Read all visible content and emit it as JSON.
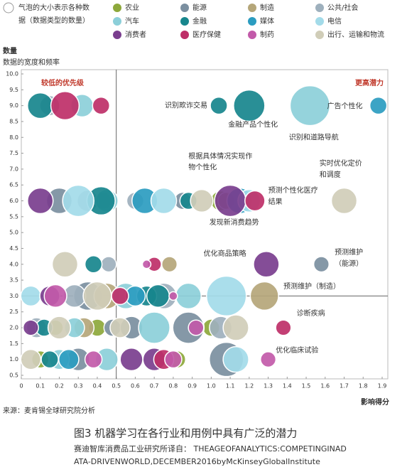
{
  "chart_data": {
    "type": "bubble",
    "legend_title": [
      "气泡的大小表示各种数",
      "据（数据类型的数量）"
    ],
    "y_label": "数量",
    "y_sublabel": "数据的宽度和频率",
    "x_label": "影响得分",
    "quadrant_labels": [
      "较低的优先级",
      "更高潜力"
    ],
    "xlim": [
      0,
      1.9
    ],
    "ylim": [
      0.5,
      10
    ],
    "xticks": [
      0,
      0.1,
      0.2,
      0.3,
      0.4,
      0.5,
      0.6,
      0.7,
      0.8,
      0.9,
      {
        "value": 1,
        "label": "1.0"
      },
      1.1,
      1.2,
      1.3,
      1.4,
      1.5,
      1.6,
      1.7,
      1.8,
      1.9
    ],
    "yticks": [
      0.5,
      {
        "value": 1,
        "label": "1.0"
      },
      1.5,
      {
        "value": 2,
        "label": "2.0"
      },
      2.5,
      {
        "value": 3,
        "label": "3.0"
      },
      3.5,
      {
        "value": 4,
        "label": "4.0"
      },
      4.5,
      {
        "value": 5,
        "label": "5.0"
      },
      5.5,
      {
        "value": 6,
        "label": "6.0"
      },
      6.5,
      {
        "value": 7,
        "label": "7.0"
      },
      7.5,
      {
        "value": 8,
        "label": "8.0"
      },
      8.5,
      {
        "value": 9,
        "label": "9.0"
      },
      9.5,
      {
        "value": 10,
        "label": "10.0"
      }
    ],
    "reference_lines": {
      "x": 0.5,
      "y": 3.0
    },
    "series": [
      {
        "name": "农业",
        "color": "#8da83b",
        "x": [
          1.05,
          0.18,
          0.4,
          1.0,
          0.1,
          0.82
        ],
        "y": [
          6,
          2,
          2,
          2,
          1,
          1
        ],
        "size": [
          22,
          13,
          16,
          16,
          16,
          16
        ]
      },
      {
        "name": "能源",
        "color": "#7b8fa0",
        "x": [
          0.2,
          0.85,
          1.58,
          0.35,
          0.48,
          0.58,
          0.88,
          0.3,
          1.08
        ],
        "y": [
          6,
          6,
          4,
          3,
          2,
          2,
          2,
          1,
          1
        ],
        "size": [
          36,
          16,
          13,
          44,
          16,
          28,
          54,
          28,
          64
        ]
      },
      {
        "name": "制造",
        "color": "#b5a679",
        "x": [
          0.43,
          1.08,
          0.78,
          0.45,
          1.28,
          0.33
        ],
        "y": [
          6,
          6,
          4,
          3,
          3,
          2
        ],
        "size": [
          16,
          16,
          13,
          36,
          44,
          22
        ]
      },
      {
        "name": "公共/社会",
        "color": "#9eb0bd",
        "x": [
          0.15,
          0.35,
          0.6,
          0.46,
          0.28,
          0.75,
          0.08,
          1.05
        ],
        "y": [
          9,
          6,
          6,
          4,
          3,
          3,
          2,
          2
        ],
        "size": [
          22,
          25,
          16,
          13,
          28,
          36,
          22,
          28
        ]
      },
      {
        "name": "汽车",
        "color": "#8ccfd9",
        "x": [
          0.32,
          1.52,
          0.45,
          0.55,
          0.88,
          0.28,
          0.7,
          0.2,
          0.45
        ],
        "y": [
          9,
          9,
          6,
          3,
          3,
          2,
          2,
          1,
          1
        ],
        "size": [
          28,
          87,
          28,
          36,
          36,
          22,
          54,
          22,
          28
        ]
      },
      {
        "name": "金融",
        "color": "#17868d",
        "x": [
          0.1,
          1.04,
          1.2,
          0.42,
          0.88,
          0.38,
          0.66,
          0.72,
          0.12,
          0.15
        ],
        "y": [
          9,
          9,
          9,
          6,
          6,
          4,
          3,
          3,
          2,
          1
        ],
        "size": [
          36,
          16,
          54,
          44,
          16,
          16,
          22,
          28,
          16,
          16
        ]
      },
      {
        "name": "媒体",
        "color": "#2b9cc0",
        "x": [
          1.88,
          0.65,
          1.15,
          0.6,
          0.25
        ],
        "y": [
          9,
          6,
          6,
          3,
          1
        ],
        "size": [
          16,
          36,
          36,
          22,
          22
        ]
      },
      {
        "name": "电信",
        "color": "#a3dbe9",
        "x": [
          0.3,
          0.75,
          1.2,
          0.05,
          1.08,
          1.13
        ],
        "y": [
          6,
          6,
          6,
          3,
          3,
          1
        ],
        "size": [
          54,
          36,
          28,
          22,
          87,
          36
        ]
      },
      {
        "name": "消费者",
        "color": "#7a3e8e",
        "x": [
          0.1,
          1.1,
          1.29,
          0.15,
          0.05,
          0.58,
          0.7
        ],
        "y": [
          6,
          6,
          4,
          3,
          2,
          1,
          1
        ],
        "size": [
          36,
          54,
          36,
          22,
          13,
          28,
          28
        ]
      },
      {
        "name": "医疗保健",
        "color": "#be2f68",
        "x": [
          0.23,
          0.42,
          1.23,
          0.7,
          0.52,
          1.38,
          0.75
        ],
        "y": [
          9,
          9,
          6,
          4,
          3,
          2,
          1
        ],
        "size": [
          44,
          16,
          22,
          11,
          16,
          13,
          22
        ]
      },
      {
        "name": "制药",
        "color": "#c25aa9",
        "x": [
          0.66,
          0.18,
          0.8,
          0.92,
          0.38,
          0.8,
          1.3
        ],
        "y": [
          4,
          3,
          3,
          2,
          1,
          1,
          1
        ],
        "size": [
          4,
          28,
          4,
          13,
          16,
          16,
          13
        ]
      },
      {
        "name": "出行、运输和物流",
        "color": "#d0cdb8",
        "x": [
          0.95,
          1.7,
          0.23,
          0.4,
          0.2,
          0.52,
          1.13,
          0.05
        ],
        "y": [
          6,
          6,
          4,
          3,
          2,
          2,
          2,
          1
        ],
        "size": [
          28,
          36,
          36,
          44,
          28,
          22,
          36,
          22
        ]
      }
    ],
    "annotations": [
      "识别欺诈交易",
      "金融产品个性化",
      "识别和道路导航",
      "广告个性化",
      "根据具体情况实现作",
      "物个性化",
      "实时优化定价",
      "和调度",
      "预测个性化医疗",
      "结果",
      "发现新消费趋势",
      "优化商品策略",
      "预测维护",
      "（能源）",
      "预测维护（制造）",
      "诊断疾病",
      "优化临床试验"
    ],
    "source": "来源：麦肯锡全球研究院分析"
  },
  "caption": {
    "title": "图3 机器学习在各行业和用例中具有广泛的潜力",
    "lines": [
      "赛迪智库消费品工业研究所译自： THEAGEOFANALYTICS:COMPETINGINAD",
      "ATA-DRIVENWORLD,DECEMBER2016byMcKinseyGlobalInstitute"
    ]
  }
}
